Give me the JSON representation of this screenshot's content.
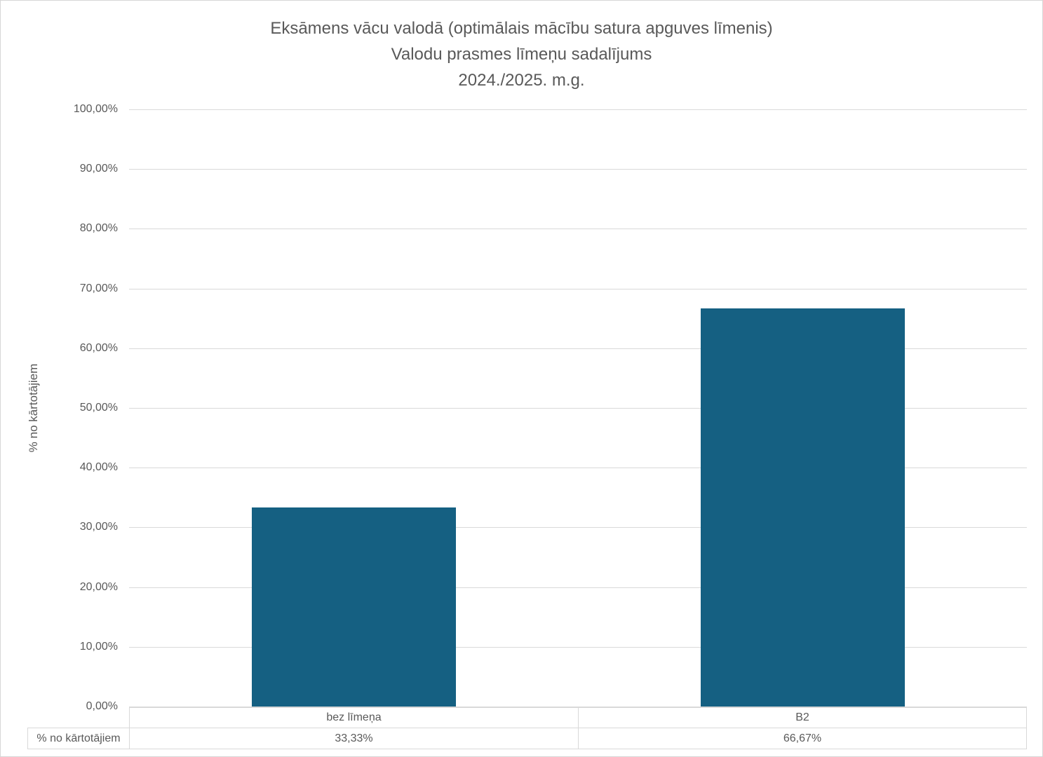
{
  "chart": {
    "title_lines": [
      "Eksāmens vācu valodā (optimālais mācību satura apguves līmenis)",
      "Valodu prasmes līmeņu sadalījums",
      "2024./2025. m.g."
    ]
  },
  "chart_data": {
    "type": "bar",
    "title": "Eksāmens vācu valodā (optimālais mācību satura apguves līmenis) Valodu prasmes līmeņu sadalījums 2024./2025. m.g.",
    "categories": [
      "bez līmeņa",
      "B2"
    ],
    "series": [
      {
        "name": "% no kārtotājiem",
        "values": [
          33.33,
          66.67
        ],
        "value_labels": [
          "33,33%",
          "66,67%"
        ]
      }
    ],
    "xlabel": "",
    "ylabel": "% no kārtotājiem",
    "ylim": [
      0,
      100
    ],
    "ytick_step": 10,
    "ytick_labels": [
      "0,00%",
      "10,00%",
      "20,00%",
      "30,00%",
      "40,00%",
      "50,00%",
      "60,00%",
      "70,00%",
      "80,00%",
      "90,00%",
      "100,00%"
    ],
    "grid": true,
    "legend_position": "none",
    "data_table_shown": true
  },
  "data_table": {
    "row_header": "% no kārtotājiem",
    "categories": [
      "bez līmeņa",
      "B2"
    ],
    "values": [
      "33,33%",
      "66,67%"
    ]
  },
  "colors": {
    "bar": "#156082",
    "gridline": "#d9d9d9",
    "text": "#595959",
    "table_border": "#d9d9d9",
    "background": "#ffffff"
  }
}
